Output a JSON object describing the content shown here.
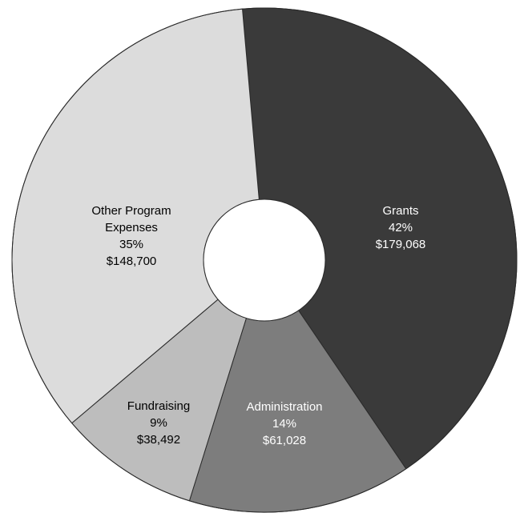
{
  "chart_data": {
    "type": "pie",
    "donut": true,
    "title": "",
    "slices": [
      {
        "label": "Grants",
        "percent": "42%",
        "amount": "$179,068",
        "value": 179068,
        "color": "#3a3a3a",
        "text_color": "#ffffff"
      },
      {
        "label": "Administration",
        "percent": "14%",
        "amount": "$61,028",
        "value": 61028,
        "color": "#7d7d7d",
        "text_color": "#ffffff"
      },
      {
        "label": "Fundraising",
        "percent": "9%",
        "amount": "$38,492",
        "value": 38492,
        "color": "#bdbdbd",
        "text_color": "#000000"
      },
      {
        "label": "Other Program Expenses",
        "percent": "35%",
        "amount": "$148,700",
        "value": 148700,
        "color": "#dcdcdc",
        "text_color": "#000000"
      }
    ]
  }
}
